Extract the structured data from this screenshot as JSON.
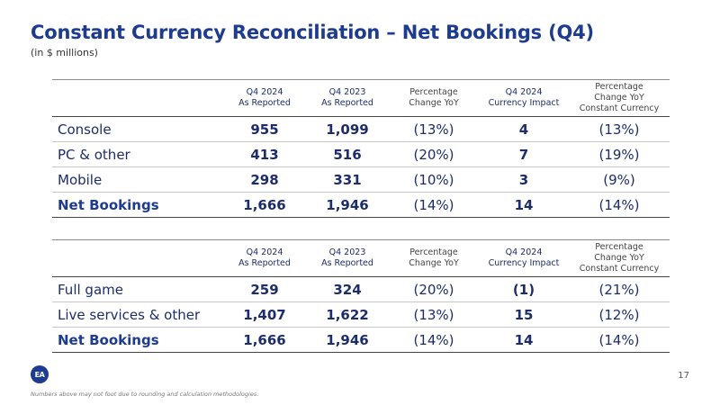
{
  "title": "Constant Currency Reconciliation – Net Bookings (Q4)",
  "subtitle": "(in $ millions)",
  "headers": [
    [
      "Q4 2024",
      "As Reported"
    ],
    [
      "Q4 2023",
      "As Reported"
    ],
    [
      "Percentage",
      "Change YoY"
    ],
    [
      "Q4 2024",
      "Currency Impact"
    ],
    [
      "Percentage",
      "Change YoY",
      "Constant Currency"
    ]
  ],
  "table1": {
    "rows": [
      {
        "label": "Console",
        "cells": [
          "955",
          "1,099",
          "(13%)",
          "4",
          "(13%)"
        ]
      },
      {
        "label": "PC & other",
        "cells": [
          "413",
          "516",
          "(20%)",
          "7",
          "(19%)"
        ]
      },
      {
        "label": "Mobile",
        "cells": [
          "298",
          "331",
          "(10%)",
          "3",
          "(9%)"
        ]
      },
      {
        "label": "Net Bookings",
        "cells": [
          "1,666",
          "1,946",
          "(14%)",
          "14",
          "(14%)"
        ]
      }
    ]
  },
  "table2": {
    "rows": [
      {
        "label": "Full game",
        "cells": [
          "259",
          "324",
          "(20%)",
          "(1)",
          "(21%)"
        ]
      },
      {
        "label": "Live services & other",
        "cells": [
          "1,407",
          "1,622",
          "(13%)",
          "15",
          "(12%)"
        ]
      },
      {
        "label": "Net Bookings",
        "cells": [
          "1,666",
          "1,946",
          "(14%)",
          "14",
          "(14%)"
        ]
      }
    ]
  },
  "logo_text": "EA",
  "page_number": "17",
  "footnote": "Numbers above may not foot due to rounding and calculation methodologies."
}
